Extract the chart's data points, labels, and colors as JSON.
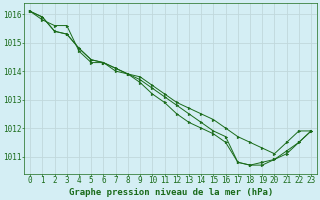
{
  "title": "Graphe pression niveau de la mer (hPa)",
  "background_color": "#d4eef4",
  "grid_color": "#c0d8dc",
  "line_color": "#1a6b1a",
  "marker_color": "#1a6b1a",
  "xlim": [
    -0.5,
    23.5
  ],
  "ylim": [
    1010.4,
    1016.4
  ],
  "yticks": [
    1011,
    1012,
    1013,
    1014,
    1015,
    1016
  ],
  "xticks": [
    0,
    1,
    2,
    3,
    4,
    5,
    6,
    7,
    8,
    9,
    10,
    11,
    12,
    13,
    14,
    15,
    16,
    17,
    18,
    19,
    20,
    21,
    22,
    23
  ],
  "series": [
    [
      1016.1,
      1015.8,
      1015.6,
      1015.6,
      1014.7,
      1014.3,
      1014.3,
      1014.0,
      1013.9,
      1013.8,
      1013.5,
      1013.2,
      1012.9,
      1012.7,
      1012.5,
      1012.3,
      1012.0,
      1011.7,
      1011.5,
      1011.3,
      1011.1,
      1011.5,
      1011.9,
      1011.9
    ],
    [
      1016.1,
      1015.9,
      1015.4,
      1015.3,
      1014.8,
      1014.4,
      1014.3,
      1014.1,
      1013.9,
      1013.7,
      1013.4,
      1013.1,
      1012.8,
      1012.5,
      1012.2,
      1011.9,
      1011.7,
      1010.8,
      1010.7,
      1010.7,
      1010.9,
      1011.2,
      1011.5,
      1011.9
    ],
    [
      1016.1,
      1015.9,
      1015.4,
      1015.3,
      1014.8,
      1014.4,
      1014.3,
      1014.1,
      1013.9,
      1013.6,
      1013.2,
      1012.9,
      1012.5,
      1012.2,
      1012.0,
      1011.8,
      1011.5,
      1010.8,
      1010.7,
      1010.8,
      1010.9,
      1011.1,
      1011.5,
      1011.9
    ]
  ],
  "tick_fontsize": 5.5,
  "title_fontsize": 6.5
}
